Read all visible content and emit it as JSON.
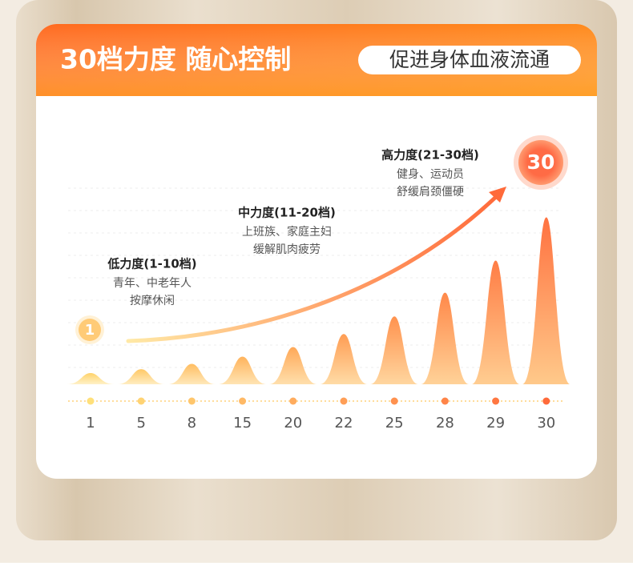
{
  "header": {
    "title": "30档力度 随心控制",
    "badge": "促进身体血液流通"
  },
  "levels": [
    {
      "title": "低力度(1-10档)",
      "lines": [
        "青年、中老年人",
        "按摩休闲"
      ]
    },
    {
      "title": "中力度(11-20档)",
      "lines": [
        "上班族、家庭主妇",
        "缓解肌肉疲劳"
      ]
    },
    {
      "title": "高力度(21-30档)",
      "lines": [
        "健身、运动员",
        "舒缓肩颈僵硬"
      ]
    }
  ],
  "start_marker": "1",
  "end_marker": "30",
  "chart": {
    "categories": [
      1,
      5,
      8,
      15,
      20,
      22,
      25,
      28,
      29,
      30
    ]
  }
}
